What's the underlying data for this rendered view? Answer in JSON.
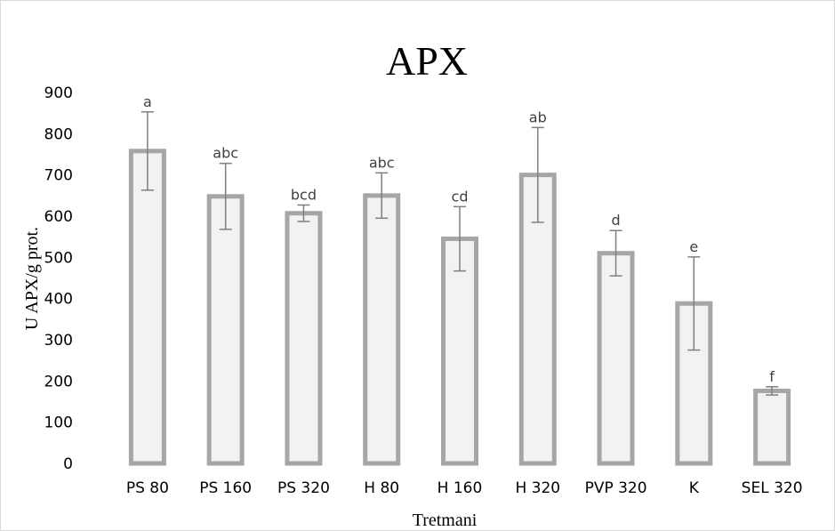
{
  "chart_data": {
    "type": "bar",
    "title": "APX",
    "xlabel": "Tretmani",
    "ylabel": "U APX/g prot.",
    "ylim": [
      0,
      900
    ],
    "yticks": [
      0,
      100,
      200,
      300,
      400,
      500,
      600,
      700,
      800,
      900
    ],
    "categories": [
      "PS 80",
      "PS 160",
      "PS 320",
      "H 80",
      "H 160",
      "H 320",
      "PVP 320",
      "K",
      "SEL 320"
    ],
    "values": [
      758,
      648,
      607,
      650,
      545,
      700,
      510,
      388,
      176
    ],
    "errors": [
      95,
      80,
      20,
      55,
      78,
      115,
      55,
      113,
      10
    ],
    "significance_labels": [
      "a",
      "abc",
      "bcd",
      "abc",
      "cd",
      "ab",
      "d",
      "e",
      "f"
    ],
    "bar_fill": "#f2f2f2",
    "bar_stroke": "#a6a6a6",
    "error_bar_color": "#7f7f7f",
    "grid": false,
    "legend": "none"
  }
}
